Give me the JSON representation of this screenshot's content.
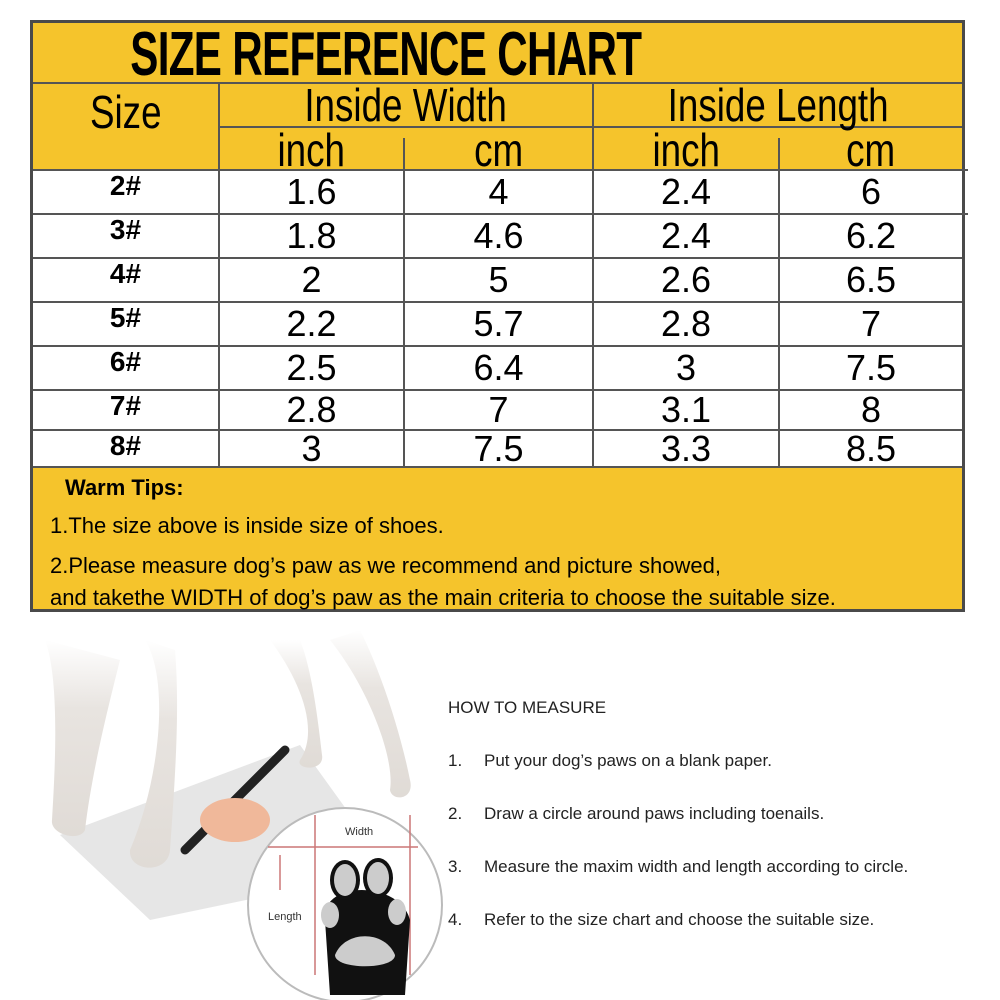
{
  "title": "SIZE REFERENCE CHART",
  "headers": {
    "size": "Size",
    "inside_width": "Inside Width",
    "inside_length": "Inside Length",
    "units": [
      "inch",
      "cm",
      "inch",
      "cm"
    ]
  },
  "rows": [
    {
      "size": "2#",
      "w_in": "1.6",
      "w_cm": "4",
      "l_in": "2.4",
      "l_cm": "6"
    },
    {
      "size": "3#",
      "w_in": "1.8",
      "w_cm": "4.6",
      "l_in": "2.4",
      "l_cm": "6.2"
    },
    {
      "size": "4#",
      "w_in": "2",
      "w_cm": "5",
      "l_in": "2.6",
      "l_cm": "6.5"
    },
    {
      "size": "5#",
      "w_in": "2.2",
      "w_cm": "5.7",
      "l_in": "2.8",
      "l_cm": "7"
    },
    {
      "size": "6#",
      "w_in": "2.5",
      "w_cm": "6.4",
      "l_in": "3",
      "l_cm": "7.5"
    },
    {
      "size": "7#",
      "w_in": "2.8",
      "w_cm": "7",
      "l_in": "3.1",
      "l_cm": "8"
    },
    {
      "size": "8#",
      "w_in": "3",
      "w_cm": "7.5",
      "l_in": "3.3",
      "l_cm": "8.5"
    }
  ],
  "tips": {
    "heading": "Warm Tips:",
    "line1": "1.The size above is inside size of shoes.",
    "line2": "2.Please measure dog’s paw as we recommend and picture showed,",
    "line3": "and takethe WIDTH of dog’s paw as the main criteria to choose the suitable size."
  },
  "illustration": {
    "width_label": "Width",
    "length_label": "Length"
  },
  "how_to": {
    "heading": "HOW TO MEASURE",
    "steps": [
      {
        "num": "1.",
        "text": "Put your dog’s paws on a blank paper."
      },
      {
        "num": "2.",
        "text": "Draw a circle around paws including toenails."
      },
      {
        "num": "3.",
        "text": "Measure the maxim width and length according to circle."
      },
      {
        "num": "4.",
        "text": "Refer to the size chart and choose the suitable size."
      }
    ]
  },
  "colors": {
    "yellow": "#f5c42c",
    "border": "#4a4a4a"
  }
}
